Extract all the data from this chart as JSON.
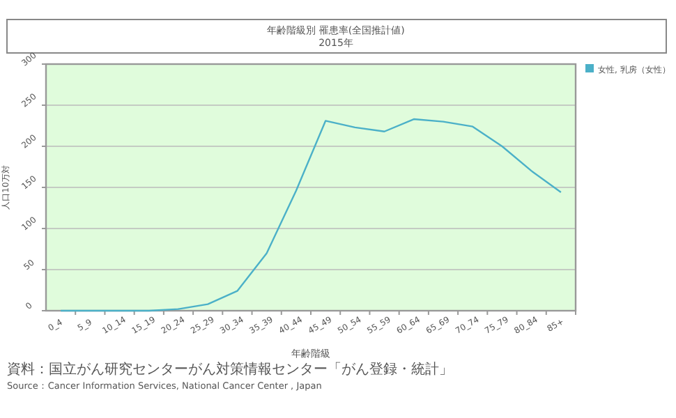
{
  "chart_data": {
    "type": "line",
    "title": "年齢階級別 罹患率(全国推計値)",
    "subtitle": "2015年",
    "xlabel": "年齢階級",
    "ylabel": "人口10万対",
    "categories": [
      "0_4",
      "5_9",
      "10_14",
      "15_19",
      "20_24",
      "25_29",
      "30_34",
      "35_39",
      "40_44",
      "45_49",
      "50_54",
      "55_59",
      "60_64",
      "65_69",
      "70_74",
      "75_79",
      "80_84",
      "85+"
    ],
    "series": [
      {
        "name": "女性, 乳房（女性）",
        "color": "#4bb0c8",
        "values": [
          0,
          0,
          0,
          0,
          2,
          8,
          24,
          70,
          146,
          231,
          223,
          218,
          233,
          230,
          224,
          200,
          170,
          144
        ]
      }
    ],
    "ylim": [
      0,
      300
    ],
    "yticks": [
      0,
      50,
      100,
      150,
      200,
      250,
      300
    ],
    "grid": "y",
    "legend": "top right",
    "marker": "none",
    "line_style": "solid",
    "annotations": [
      "資料：国立がん研究センターがん対策情報センター「がん登録・統計」",
      "Source：Cancer Information Services, National Cancer Center , Japan"
    ]
  }
}
